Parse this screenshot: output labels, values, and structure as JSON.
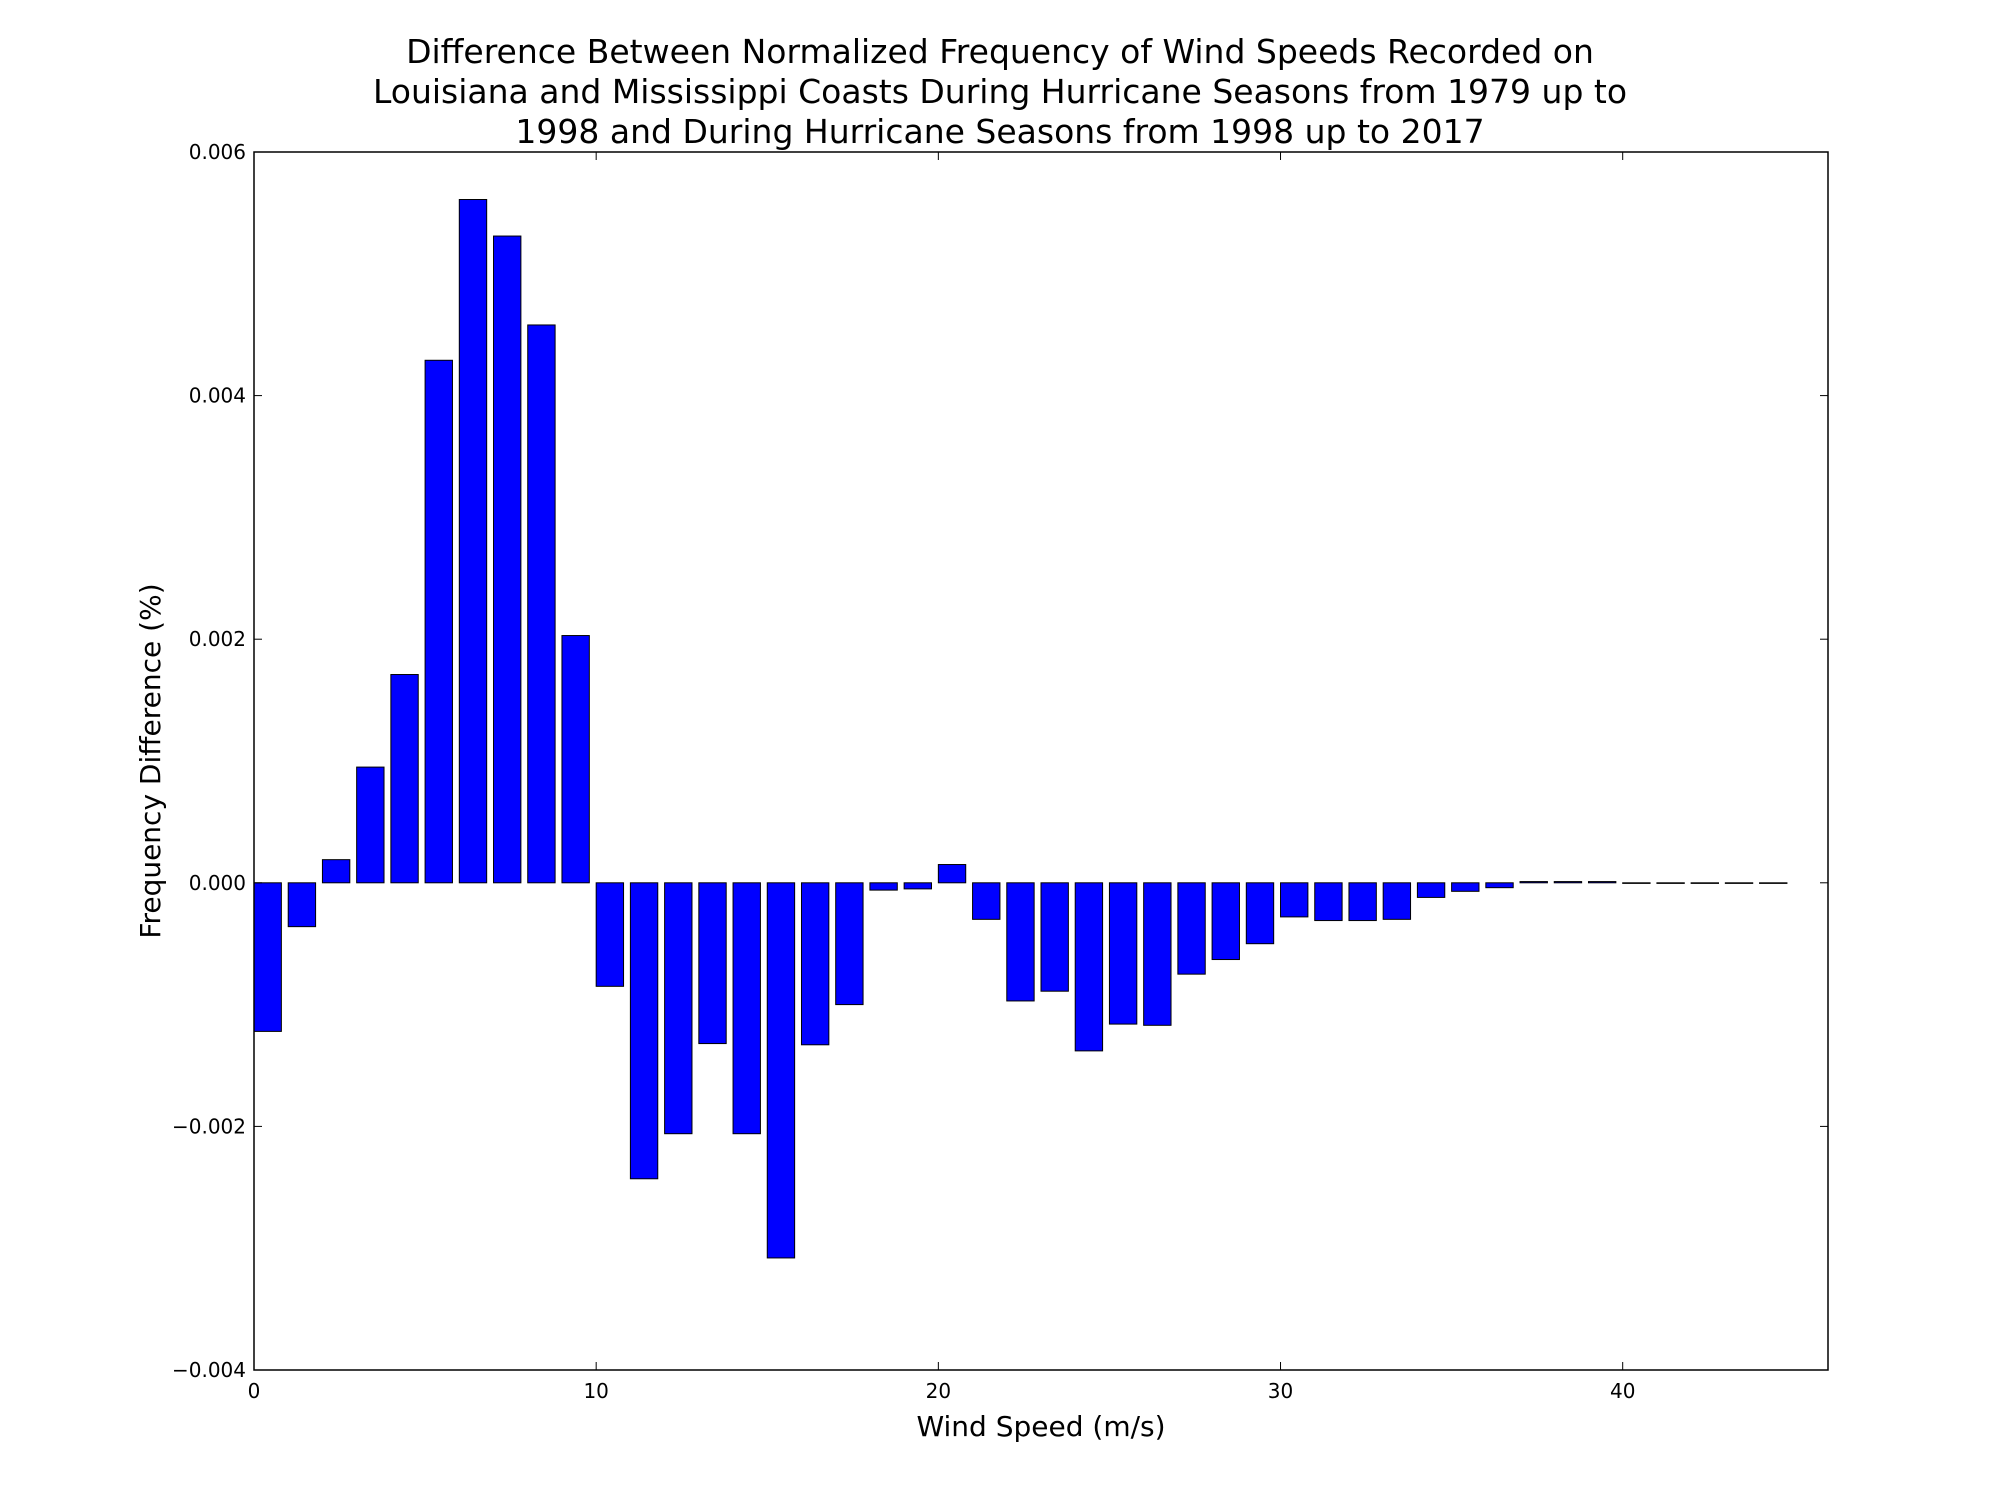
{
  "chart_data": {
    "type": "bar",
    "title": [
      "Difference Between Normalized Frequency of Wind Speeds Recorded on",
      "Louisiana and Mississippi Coasts During Hurricane Seasons from 1979 up to",
      "1998 and During Hurricane Seasons from 1998 up to 2017"
    ],
    "xlabel": "Wind Speed (m/s)",
    "ylabel": "Frequency Difference (%)",
    "xlim": [
      0,
      46
    ],
    "ylim": [
      -0.004,
      0.006
    ],
    "xticks": [
      0,
      10,
      20,
      30,
      40
    ],
    "xtick_labels": [
      "0",
      "10",
      "20",
      "30",
      "40"
    ],
    "yticks": [
      -0.004,
      -0.002,
      0.0,
      0.002,
      0.004,
      0.006
    ],
    "ytick_labels": [
      "−0.004",
      "−0.002",
      "0.000",
      "0.002",
      "0.004",
      "0.006"
    ],
    "bar_width": 0.8,
    "bar_color": "#0000ff",
    "edge_color": "#000000",
    "grid": false,
    "x": [
      0,
      1,
      2,
      3,
      4,
      5,
      6,
      7,
      8,
      9,
      10,
      11,
      12,
      13,
      14,
      15,
      16,
      17,
      18,
      19,
      20,
      21,
      22,
      23,
      24,
      25,
      26,
      27,
      28,
      29,
      30,
      31,
      32,
      33,
      34,
      35,
      36,
      37,
      38,
      39,
      40,
      41,
      42,
      43,
      44
    ],
    "values": [
      -0.00122,
      -0.00036,
      0.00019,
      0.00095,
      0.00171,
      0.00429,
      0.00561,
      0.00531,
      0.00458,
      0.00203,
      -0.00085,
      -0.00243,
      -0.00206,
      -0.00132,
      -0.00206,
      -0.00308,
      -0.00133,
      -0.001,
      -6e-05,
      -5e-05,
      0.00015,
      -0.0003,
      -0.00097,
      -0.00089,
      -0.00138,
      -0.00116,
      -0.00117,
      -0.00075,
      -0.00063,
      -0.0005,
      -0.00028,
      -0.00031,
      -0.00031,
      -0.0003,
      -0.00012,
      -7e-05,
      -4e-05,
      1e-05,
      1e-05,
      1e-05,
      0.0,
      0.0,
      0.0,
      0.0,
      0.0
    ]
  }
}
